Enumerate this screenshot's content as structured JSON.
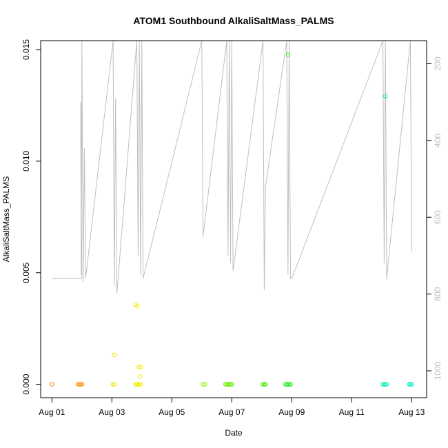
{
  "chart_data": {
    "type": "scatter",
    "title": "ATOM1 Southbound AlkaliSaltMass_PALMS",
    "xlabel": "Date",
    "ylabel": "AlkaliSaltMass_PALMS",
    "x_tick_labels": [
      "Aug 01",
      "Aug 03",
      "Aug 05",
      "Aug 07",
      "Aug 09",
      "Aug 11",
      "Aug 13"
    ],
    "x_tick_values": [
      "2016-08-01",
      "2016-08-03",
      "2016-08-05",
      "2016-08-07",
      "2016-08-09",
      "2016-08-11",
      "2016-08-13"
    ],
    "x_range": [
      "2016-07-31 15:00",
      "2016-08-13 12:00"
    ],
    "y_tick_labels": [
      "0.000",
      "0.005",
      "0.010",
      "0.015"
    ],
    "y_tick_values": [
      0.0,
      0.005,
      0.01,
      0.015
    ],
    "ylim": [
      -0.0006,
      0.0154
    ],
    "right_axis": {
      "tick_labels": [
        "200",
        "400",
        "600",
        "800",
        "1000"
      ],
      "tick_values": [
        200,
        400,
        600,
        800,
        1000
      ],
      "range": [
        1070,
        140
      ],
      "color": "#bebebe"
    },
    "points": [
      {
        "x": "2016-08-01 00:00",
        "y": 0.0,
        "color": "#ff7f00"
      },
      {
        "x": "2016-08-01 21:00",
        "y": 0.0,
        "color": "#ff8c00"
      },
      {
        "x": "2016-08-01 22:00",
        "y": 0.0,
        "color": "#ff8c00"
      },
      {
        "x": "2016-08-01 23:00",
        "y": 0.0,
        "color": "#ff8c00"
      },
      {
        "x": "2016-08-02 00:00",
        "y": 0.0,
        "color": "#ff8c00"
      },
      {
        "x": "2016-08-03 01:00",
        "y": 0.0,
        "color": "#e6e600"
      },
      {
        "x": "2016-08-03 02:00",
        "y": 0.0,
        "color": "#e6e600"
      },
      {
        "x": "2016-08-03 02:00",
        "y": 0.00132,
        "color": "#e6e600"
      },
      {
        "x": "2016-08-03 19:00",
        "y": 0.0,
        "color": "#eeee00"
      },
      {
        "x": "2016-08-03 20:00",
        "y": 0.0,
        "color": "#eeee00"
      },
      {
        "x": "2016-08-03 21:00",
        "y": 0.0,
        "color": "#eeee00"
      },
      {
        "x": "2016-08-03 22:00",
        "y": 0.0,
        "color": "#eeee00"
      },
      {
        "x": "2016-08-03 23:00",
        "y": 0.0,
        "color": "#eeee00"
      },
      {
        "x": "2016-08-03 19:00",
        "y": 0.00357,
        "color": "#eeee00"
      },
      {
        "x": "2016-08-03 20:30",
        "y": 0.0035,
        "color": "#eeee00"
      },
      {
        "x": "2016-08-03 21:30",
        "y": 0.00078,
        "color": "#eeee00"
      },
      {
        "x": "2016-08-03 23:00",
        "y": 0.00078,
        "color": "#eeee00"
      },
      {
        "x": "2016-08-03 22:30",
        "y": 0.00035,
        "color": "#eeee00"
      },
      {
        "x": "2016-08-06 01:00",
        "y": 0.0,
        "color": "#99ee00"
      },
      {
        "x": "2016-08-06 02:30",
        "y": 0.0,
        "color": "#99ee00"
      },
      {
        "x": "2016-08-06 19:00",
        "y": 0.0,
        "color": "#66ee00"
      },
      {
        "x": "2016-08-06 20:00",
        "y": 0.0,
        "color": "#66ee00"
      },
      {
        "x": "2016-08-06 21:00",
        "y": 0.0,
        "color": "#66ee00"
      },
      {
        "x": "2016-08-06 22:00",
        "y": 0.0,
        "color": "#66ee00"
      },
      {
        "x": "2016-08-06 23:00",
        "y": 0.0,
        "color": "#66ee00"
      },
      {
        "x": "2016-08-07 00:00",
        "y": 0.0,
        "color": "#66ee00"
      },
      {
        "x": "2016-08-08 01:00",
        "y": 0.0,
        "color": "#44ee00"
      },
      {
        "x": "2016-08-08 02:00",
        "y": 0.0,
        "color": "#44ee00"
      },
      {
        "x": "2016-08-08 03:00",
        "y": 0.0,
        "color": "#44ee00"
      },
      {
        "x": "2016-08-08 19:00",
        "y": 0.0,
        "color": "#22ee22"
      },
      {
        "x": "2016-08-08 20:00",
        "y": 0.0,
        "color": "#22ee22"
      },
      {
        "x": "2016-08-08 21:00",
        "y": 0.0,
        "color": "#22ee22"
      },
      {
        "x": "2016-08-08 22:00",
        "y": 0.0,
        "color": "#22ee22"
      },
      {
        "x": "2016-08-08 23:00",
        "y": 0.0,
        "color": "#22ee22"
      },
      {
        "x": "2016-08-08 21:00",
        "y": 0.01477,
        "color": "#22ee22"
      },
      {
        "x": "2016-08-12 01:00",
        "y": 0.0,
        "color": "#00eebb"
      },
      {
        "x": "2016-08-12 02:00",
        "y": 0.0,
        "color": "#00eebb"
      },
      {
        "x": "2016-08-12 03:00",
        "y": 0.0,
        "color": "#00eebb"
      },
      {
        "x": "2016-08-12 04:00",
        "y": 0.0,
        "color": "#00eebb"
      },
      {
        "x": "2016-08-12 03:00",
        "y": 0.01291,
        "color": "#00eebb"
      },
      {
        "x": "2016-08-12 22:00",
        "y": 0.0,
        "color": "#00eecc"
      },
      {
        "x": "2016-08-12 23:00",
        "y": 0.0,
        "color": "#00eecc"
      },
      {
        "x": "2016-08-13 00:00",
        "y": 0.0,
        "color": "#00eecc"
      }
    ],
    "secondary_line": {
      "color": "#bebebe",
      "values": [
        {
          "x": "2016-08-01 00:00",
          "y": 760
        },
        {
          "x": "2016-08-02 00:00",
          "y": 760
        },
        {
          "x": "2016-08-01 23:00",
          "y": 300
        },
        {
          "x": "2016-08-01 23:30",
          "y": 750
        },
        {
          "x": "2016-08-02 00:00",
          "y": 140
        },
        {
          "x": "2016-08-02 01:00",
          "y": 770
        },
        {
          "x": "2016-08-02 02:00",
          "y": 420
        },
        {
          "x": "2016-08-02 03:00",
          "y": 760
        },
        {
          "x": "2016-08-03 01:00",
          "y": 140
        },
        {
          "x": "2016-08-03 02:00",
          "y": 780
        },
        {
          "x": "2016-08-03 03:00",
          "y": 290
        },
        {
          "x": "2016-08-03 04:00",
          "y": 800
        },
        {
          "x": "2016-08-03 20:00",
          "y": 140
        },
        {
          "x": "2016-08-03 21:00",
          "y": 700
        },
        {
          "x": "2016-08-03 22:00",
          "y": 140
        },
        {
          "x": "2016-08-03 23:00",
          "y": 750
        },
        {
          "x": "2016-08-04 00:00",
          "y": 140
        },
        {
          "x": "2016-08-04 01:00",
          "y": 760
        },
        {
          "x": "2016-08-06 00:00",
          "y": 140
        },
        {
          "x": "2016-08-06 01:00",
          "y": 650
        },
        {
          "x": "2016-08-06 20:00",
          "y": 140
        },
        {
          "x": "2016-08-06 21:00",
          "y": 700
        },
        {
          "x": "2016-08-06 22:00",
          "y": 140
        },
        {
          "x": "2016-08-06 23:00",
          "y": 720
        },
        {
          "x": "2016-08-07 00:00",
          "y": 140
        },
        {
          "x": "2016-08-07 01:00",
          "y": 740
        },
        {
          "x": "2016-08-08 01:00",
          "y": 140
        },
        {
          "x": "2016-08-08 02:00",
          "y": 790
        },
        {
          "x": "2016-08-08 03:00",
          "y": 520
        },
        {
          "x": "2016-08-08 20:00",
          "y": 140
        },
        {
          "x": "2016-08-08 21:00",
          "y": 750
        },
        {
          "x": "2016-08-08 22:00",
          "y": 140
        },
        {
          "x": "2016-08-08 23:00",
          "y": 760
        },
        {
          "x": "2016-08-09 00:00",
          "y": 760
        },
        {
          "x": "2016-08-12 01:00",
          "y": 140
        },
        {
          "x": "2016-08-12 02:00",
          "y": 720
        },
        {
          "x": "2016-08-12 03:00",
          "y": 140
        },
        {
          "x": "2016-08-12 04:00",
          "y": 760
        },
        {
          "x": "2016-08-12 23:00",
          "y": 140
        },
        {
          "x": "2016-08-13 00:00",
          "y": 690
        }
      ]
    },
    "grid": false,
    "legend": "none"
  }
}
